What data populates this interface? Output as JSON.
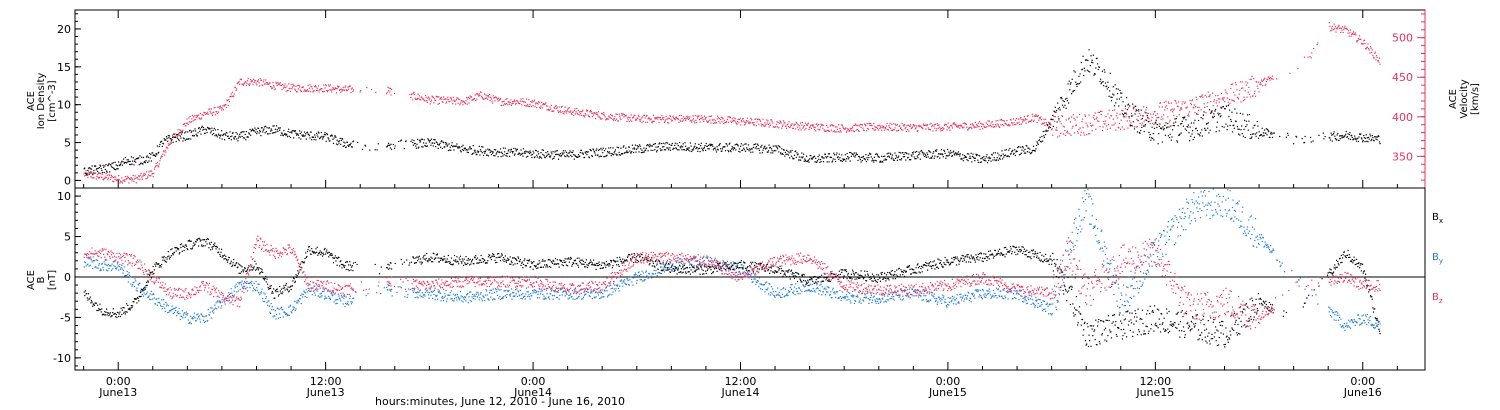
{
  "colors": {
    "black": "#000000",
    "pink": "#e8325e",
    "blue": "#1a7ad8",
    "axis": "#000000"
  },
  "chart_data": [
    {
      "type": "scatter",
      "panel": "top",
      "ylabel_left": [
        "ACE",
        "Ion Density",
        "[cm^-3]"
      ],
      "ylabel_right": [
        "ACE",
        "Velocity",
        "[km/s]"
      ],
      "y_left_ticks": [
        "0",
        "5",
        "10",
        "15",
        "20"
      ],
      "y_left_range": [
        -1,
        22.5
      ],
      "y_right_ticks": [
        "350",
        "400",
        "450",
        "500"
      ],
      "y_right_range": [
        310,
        535
      ],
      "series": [
        {
          "name": "Ion Density",
          "axis": "left",
          "color": "black",
          "points": [
            [
              -2.0,
              1.2
            ],
            [
              -1.0,
              1.6
            ],
            [
              0.0,
              2.0
            ],
            [
              0.5,
              2.8
            ],
            [
              1.0,
              2.6
            ],
            [
              2.0,
              3.2
            ],
            [
              2.5,
              5.0
            ],
            [
              3.0,
              5.6
            ],
            [
              4.0,
              6.0
            ],
            [
              5.0,
              6.8
            ],
            [
              6.0,
              6.0
            ],
            [
              7.0,
              5.8
            ],
            [
              8.0,
              6.5
            ],
            [
              9.0,
              6.8
            ],
            [
              10.0,
              6.2
            ],
            [
              11.0,
              6.0
            ],
            [
              12.0,
              5.8
            ],
            [
              13.0,
              5.0
            ],
            [
              14.0,
              4.5
            ],
            [
              16.0,
              4.8
            ],
            [
              18.0,
              5.0
            ],
            [
              20.0,
              4.2
            ],
            [
              22.0,
              3.8
            ],
            [
              24.0,
              3.6
            ],
            [
              26.0,
              3.4
            ],
            [
              28.0,
              3.8
            ],
            [
              30.0,
              4.2
            ],
            [
              32.0,
              4.6
            ],
            [
              34.0,
              4.4
            ],
            [
              36.0,
              4.4
            ],
            [
              38.0,
              4.2
            ],
            [
              40.0,
              2.8
            ],
            [
              42.0,
              3.2
            ],
            [
              44.0,
              3.0
            ],
            [
              46.0,
              3.4
            ],
            [
              48.0,
              3.6
            ],
            [
              50.0,
              2.8
            ],
            [
              52.0,
              4.0
            ],
            [
              53.0,
              4.2
            ],
            [
              54.0,
              8.0
            ],
            [
              55.0,
              12.0
            ],
            [
              56.0,
              16.0
            ],
            [
              57.0,
              14.0
            ],
            [
              58.0,
              10.0
            ],
            [
              59.0,
              8.0
            ],
            [
              60.0,
              6.5
            ],
            [
              62.0,
              7.0
            ],
            [
              64.0,
              8.5
            ],
            [
              66.0,
              6.5
            ],
            [
              68.0,
              5.5
            ],
            [
              71.0,
              6.0
            ],
            [
              73.0,
              5.5
            ]
          ]
        },
        {
          "name": "Velocity",
          "axis": "right",
          "color": "pink",
          "points": [
            [
              -2.0,
              328
            ],
            [
              -1.0,
              325
            ],
            [
              0.0,
              322
            ],
            [
              1.0,
              322
            ],
            [
              2.0,
              330
            ],
            [
              3.0,
              370
            ],
            [
              4.0,
              395
            ],
            [
              5.0,
              405
            ],
            [
              6.0,
              410
            ],
            [
              6.5,
              425
            ],
            [
              7.0,
              445
            ],
            [
              8.0,
              445
            ],
            [
              9.0,
              440
            ],
            [
              10.0,
              437
            ],
            [
              11.0,
              437
            ],
            [
              12.0,
              437
            ],
            [
              13.0,
              435
            ],
            [
              14.0,
              435
            ],
            [
              15.0,
              435
            ],
            [
              16.0,
              432
            ],
            [
              18.0,
              422
            ],
            [
              20.0,
              420
            ],
            [
              21.0,
              428
            ],
            [
              22.0,
              420
            ],
            [
              23.0,
              420
            ],
            [
              24.0,
              418
            ],
            [
              26.0,
              408
            ],
            [
              28.0,
              402
            ],
            [
              30.0,
              398
            ],
            [
              32.0,
              398
            ],
            [
              34.0,
              398
            ],
            [
              36.0,
              395
            ],
            [
              38.0,
              392
            ],
            [
              40.0,
              388
            ],
            [
              42.0,
              386
            ],
            [
              44.0,
              388
            ],
            [
              46.0,
              387
            ],
            [
              48.0,
              388
            ],
            [
              50.0,
              390
            ],
            [
              52.0,
              395
            ],
            [
              53.0,
              400
            ],
            [
              54.0,
              388
            ],
            [
              56.0,
              392
            ],
            [
              58.0,
              398
            ],
            [
              60.0,
              405
            ],
            [
              62.0,
              412
            ],
            [
              64.0,
              425
            ],
            [
              66.0,
              442
            ],
            [
              68.0,
              462
            ],
            [
              69.0,
              480
            ],
            [
              70.0,
              515
            ],
            [
              71.0,
              510
            ],
            [
              72.0,
              495
            ],
            [
              73.0,
              470
            ]
          ]
        }
      ]
    },
    {
      "type": "scatter",
      "panel": "bottom",
      "ylabel_left": [
        "ACE",
        "B",
        "[nT]"
      ],
      "y_ticks": [
        "-10",
        "-5",
        "0",
        "5",
        "10"
      ],
      "y_range": [
        -11.5,
        11.0
      ],
      "x_range": [
        -2.5,
        75.6
      ],
      "x_ticks": [
        {
          "time": "0:00",
          "date": "June13",
          "hours": 0
        },
        {
          "time": "12:00",
          "date": "June13",
          "hours": 12
        },
        {
          "time": "0:00",
          "date": "June14",
          "hours": 24
        },
        {
          "time": "12:00",
          "date": "June14",
          "hours": 36
        },
        {
          "time": "0:00",
          "date": "June15",
          "hours": 48
        },
        {
          "time": "12:00",
          "date": "June15",
          "hours": 60
        },
        {
          "time": "0:00",
          "date": "June16",
          "hours": 72
        }
      ],
      "xlabel": "hours:minutes, June 12, 2010 - June 16, 2010",
      "legend": [
        {
          "label": "B",
          "sub": "x",
          "color": "black"
        },
        {
          "label": "B",
          "sub": "y",
          "color": "blue"
        },
        {
          "label": "B",
          "sub": "z",
          "color": "pink"
        }
      ],
      "series": [
        {
          "name": "Bx",
          "color": "black",
          "points": [
            [
              -2.0,
              -2.0
            ],
            [
              -1.0,
              -4.0
            ],
            [
              0.0,
              -4.5
            ],
            [
              1.0,
              -3.0
            ],
            [
              2.0,
              1.0
            ],
            [
              3.0,
              3.0
            ],
            [
              4.0,
              4.0
            ],
            [
              5.0,
              4.5
            ],
            [
              6.0,
              3.0
            ],
            [
              7.0,
              1.0
            ],
            [
              8.0,
              1.5
            ],
            [
              9.0,
              -2.0
            ],
            [
              10.0,
              -1.0
            ],
            [
              11.0,
              3.5
            ],
            [
              12.0,
              3.0
            ],
            [
              13.0,
              1.5
            ],
            [
              15.0,
              1.0
            ],
            [
              18.0,
              2.5
            ],
            [
              20.0,
              2.0
            ],
            [
              22.0,
              2.5
            ],
            [
              24.0,
              1.5
            ],
            [
              26.0,
              2.0
            ],
            [
              28.0,
              1.5
            ],
            [
              30.0,
              2.5
            ],
            [
              32.0,
              1.0
            ],
            [
              34.0,
              1.0
            ],
            [
              36.0,
              1.5
            ],
            [
              38.0,
              1.0
            ],
            [
              40.0,
              -0.5
            ],
            [
              42.0,
              0.5
            ],
            [
              44.0,
              0.0
            ],
            [
              46.0,
              1.0
            ],
            [
              48.0,
              2.0
            ],
            [
              50.0,
              2.5
            ],
            [
              52.0,
              3.5
            ],
            [
              54.0,
              2.0
            ],
            [
              55.0,
              -2.0
            ],
            [
              56.0,
              -7.0
            ],
            [
              58.0,
              -6.0
            ],
            [
              60.0,
              -5.0
            ],
            [
              62.0,
              -6.0
            ],
            [
              64.0,
              -7.0
            ],
            [
              66.0,
              -3.0
            ],
            [
              68.0,
              -5.0
            ],
            [
              71.0,
              3.0
            ],
            [
              72.0,
              1.0
            ],
            [
              73.0,
              -7.0
            ]
          ]
        },
        {
          "name": "By",
          "color": "blue",
          "points": [
            [
              -2.0,
              2.0
            ],
            [
              -1.0,
              1.5
            ],
            [
              0.0,
              1.5
            ],
            [
              1.0,
              -1.0
            ],
            [
              2.0,
              -2.5
            ],
            [
              3.0,
              -4.0
            ],
            [
              4.0,
              -5.0
            ],
            [
              5.0,
              -5.0
            ],
            [
              6.0,
              -3.0
            ],
            [
              7.0,
              -1.0
            ],
            [
              8.0,
              -1.0
            ],
            [
              9.0,
              -4.5
            ],
            [
              10.0,
              -4.0
            ],
            [
              11.0,
              -1.5
            ],
            [
              12.0,
              -2.0
            ],
            [
              13.0,
              -3.0
            ],
            [
              15.0,
              -1.5
            ],
            [
              18.0,
              -2.0
            ],
            [
              20.0,
              -2.5
            ],
            [
              22.0,
              -2.0
            ],
            [
              24.0,
              -2.0
            ],
            [
              26.0,
              -2.0
            ],
            [
              28.0,
              -2.0
            ],
            [
              30.0,
              0.0
            ],
            [
              32.0,
              1.5
            ],
            [
              34.0,
              2.0
            ],
            [
              36.0,
              1.0
            ],
            [
              38.0,
              -2.0
            ],
            [
              40.0,
              -1.0
            ],
            [
              42.0,
              -2.5
            ],
            [
              44.0,
              -2.5
            ],
            [
              46.0,
              -2.0
            ],
            [
              48.0,
              -3.0
            ],
            [
              50.0,
              -2.0
            ],
            [
              52.0,
              -2.0
            ],
            [
              54.0,
              -4.0
            ],
            [
              55.0,
              4.0
            ],
            [
              56.0,
              9.5
            ],
            [
              58.0,
              -3.0
            ],
            [
              60.0,
              3.0
            ],
            [
              62.0,
              8.5
            ],
            [
              64.0,
              9.5
            ],
            [
              66.0,
              5.0
            ],
            [
              68.0,
              0.0
            ],
            [
              71.0,
              -6.0
            ],
            [
              72.0,
              -5.0
            ],
            [
              73.0,
              -6.0
            ]
          ]
        },
        {
          "name": "Bz",
          "color": "pink",
          "points": [
            [
              -2.0,
              3.0
            ],
            [
              -1.0,
              3.0
            ],
            [
              0.0,
              2.5
            ],
            [
              1.0,
              2.0
            ],
            [
              2.0,
              0.0
            ],
            [
              3.0,
              -2.0
            ],
            [
              4.0,
              -2.0
            ],
            [
              5.0,
              -1.0
            ],
            [
              6.0,
              -2.5
            ],
            [
              7.0,
              -3.0
            ],
            [
              8.0,
              4.5
            ],
            [
              9.0,
              3.0
            ],
            [
              10.0,
              3.5
            ],
            [
              11.0,
              -1.0
            ],
            [
              12.0,
              -1.0
            ],
            [
              13.0,
              -1.5
            ],
            [
              15.0,
              -0.5
            ],
            [
              18.0,
              -1.0
            ],
            [
              20.0,
              -0.5
            ],
            [
              22.0,
              -0.5
            ],
            [
              24.0,
              -0.5
            ],
            [
              26.0,
              -1.5
            ],
            [
              28.0,
              -1.0
            ],
            [
              30.0,
              2.5
            ],
            [
              32.0,
              2.5
            ],
            [
              34.0,
              2.0
            ],
            [
              36.0,
              0.0
            ],
            [
              38.0,
              2.0
            ],
            [
              40.0,
              2.5
            ],
            [
              42.0,
              -1.0
            ],
            [
              44.0,
              -1.5
            ],
            [
              46.0,
              -1.5
            ],
            [
              48.0,
              -1.0
            ],
            [
              50.0,
              0.0
            ],
            [
              52.0,
              -1.5
            ],
            [
              54.0,
              -2.0
            ],
            [
              55.0,
              3.0
            ],
            [
              56.0,
              -2.0
            ],
            [
              58.0,
              2.0
            ],
            [
              60.0,
              3.0
            ],
            [
              62.0,
              -4.0
            ],
            [
              64.0,
              -3.0
            ],
            [
              66.0,
              -5.0
            ],
            [
              68.0,
              -1.0
            ],
            [
              71.0,
              0.0
            ],
            [
              72.0,
              -1.0
            ],
            [
              73.0,
              -1.0
            ]
          ]
        }
      ]
    }
  ]
}
